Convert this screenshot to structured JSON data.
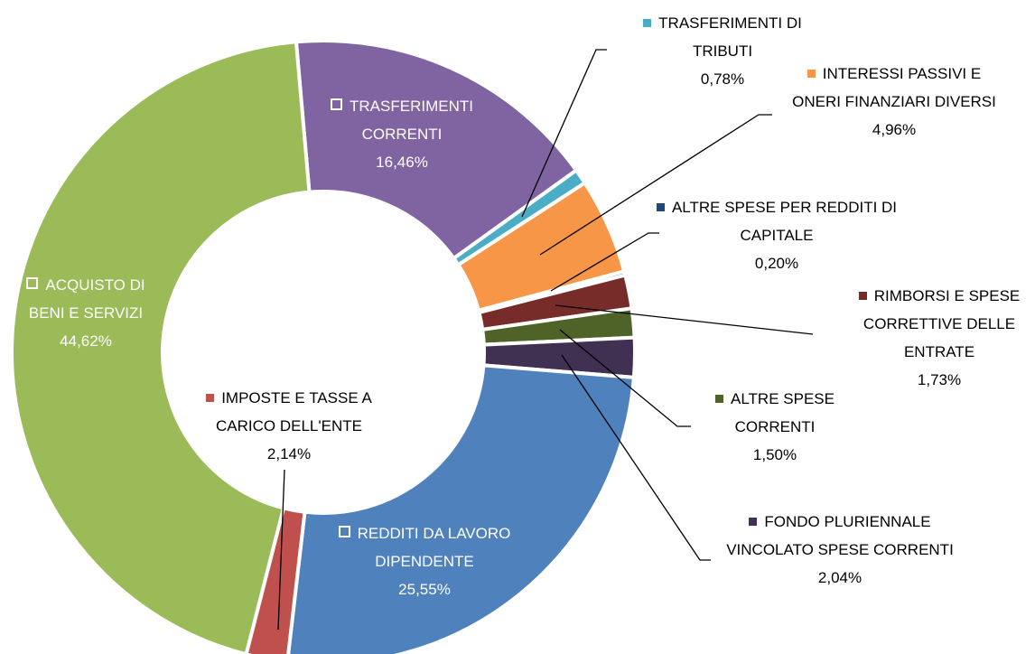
{
  "chart_data": {
    "type": "donut",
    "categories": [
      "TRASFERIMENTI CORRENTI",
      "TRASFERIMENTI DI TRIBUTI",
      "INTERESSI PASSIVI E ONERI FINANZIARI DIVERSI",
      "ALTRE SPESE PER REDDITI DI CAPITALE",
      "RIMBORSI E SPESE CORRETTIVE DELLE ENTRATE",
      "ALTRE SPESE CORRENTI",
      "FONDO PLURIENNALE VINCOLATO SPESE CORRENTI",
      "REDDITI DA LAVORO DIPENDENTE",
      "IMPOSTE E TASSE A CARICO DELL'ENTE",
      "ACQUISTO DI BENI E SERVIZI"
    ],
    "values": [
      16.46,
      0.78,
      4.96,
      0.2,
      1.73,
      1.5,
      2.04,
      25.55,
      2.14,
      44.62
    ],
    "value_labels": [
      "16,46%",
      "0,78%",
      "4,96%",
      "0,20%",
      "1,73%",
      "1,50%",
      "2,04%",
      "25,55%",
      "2,14%",
      "44,62%"
    ],
    "colors": [
      "#8064a2",
      "#4bacc6",
      "#f79646",
      "#1f497d",
      "#772c2a",
      "#4f6228",
      "#403152",
      "#4f81bd",
      "#c0504d",
      "#9bbb59"
    ]
  }
}
